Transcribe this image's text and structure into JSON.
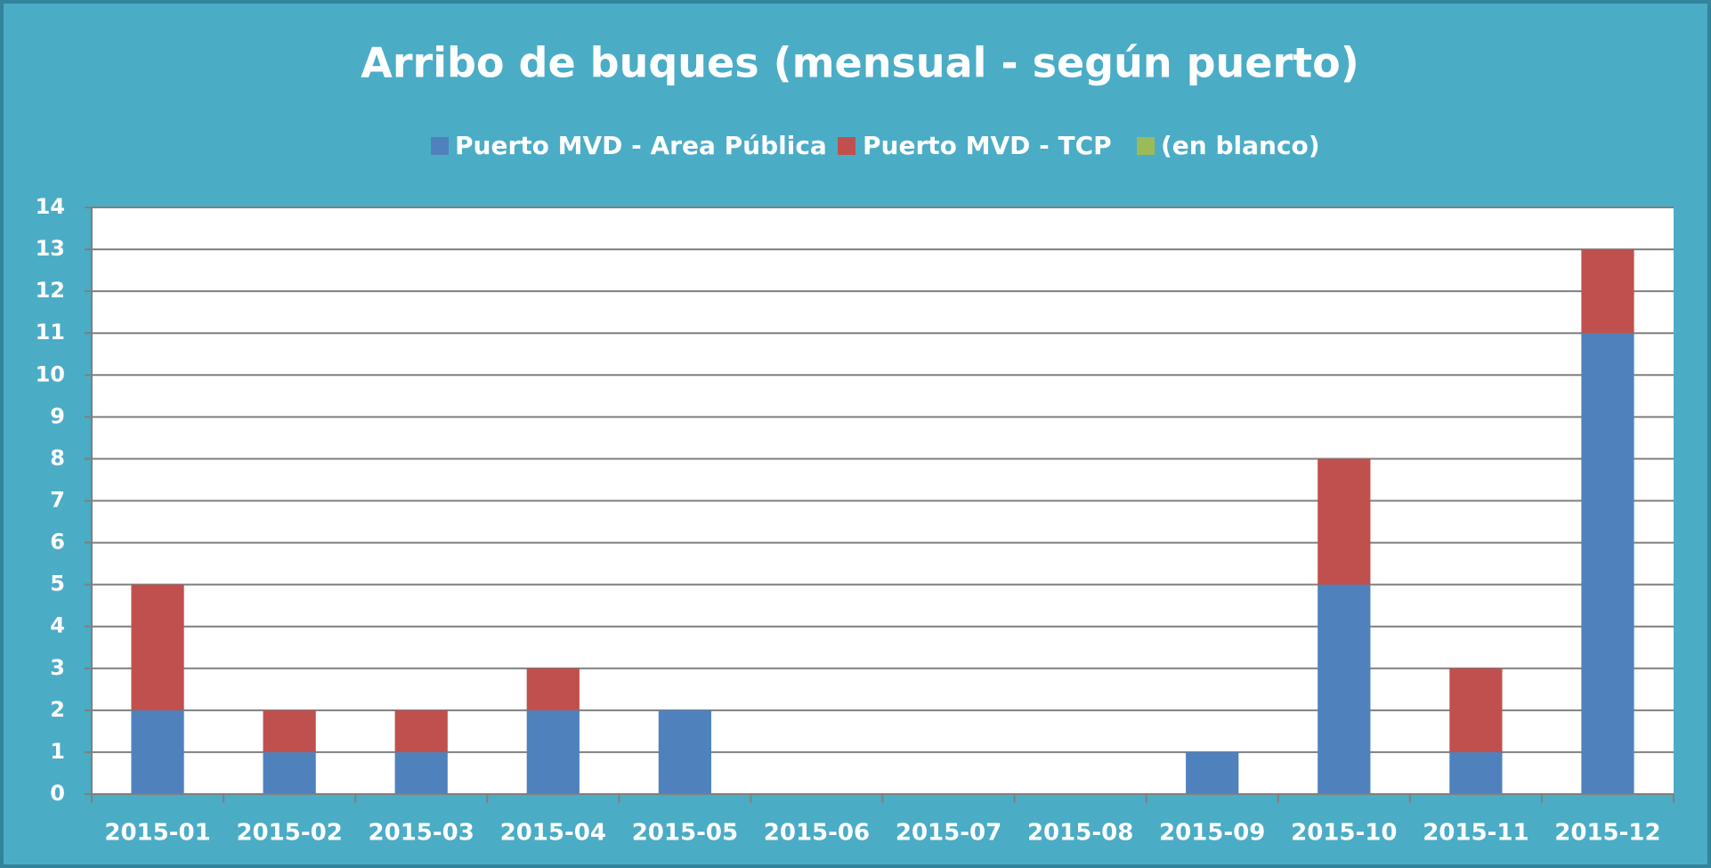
{
  "chart_data": {
    "type": "bar",
    "stacked": true,
    "title": "Arribo de buques (mensual - según puerto)",
    "categories": [
      "2015-01",
      "2015-02",
      "2015-03",
      "2015-04",
      "2015-05",
      "2015-06",
      "2015-07",
      "2015-08",
      "2015-09",
      "2015-10",
      "2015-11",
      "2015-12"
    ],
    "series": [
      {
        "name": "Puerto MVD - Area Pública",
        "color": "#4f81bd",
        "values": [
          2,
          1,
          1,
          2,
          2,
          0,
          0,
          0,
          1,
          5,
          1,
          11
        ]
      },
      {
        "name": "Puerto MVD - TCP",
        "color": "#c0504d",
        "values": [
          3,
          1,
          1,
          1,
          0,
          0,
          0,
          0,
          0,
          3,
          2,
          2
        ]
      },
      {
        "name": "(en blanco)",
        "color": "#9bbb59",
        "values": [
          0,
          0,
          0,
          0,
          0,
          0,
          0,
          0,
          0,
          0,
          0,
          0
        ]
      }
    ],
    "ylim": [
      0,
      14
    ],
    "yticks": [
      0,
      1,
      2,
      3,
      4,
      5,
      6,
      7,
      8,
      9,
      10,
      11,
      12,
      13,
      14
    ],
    "grid": true,
    "legend": "top"
  }
}
